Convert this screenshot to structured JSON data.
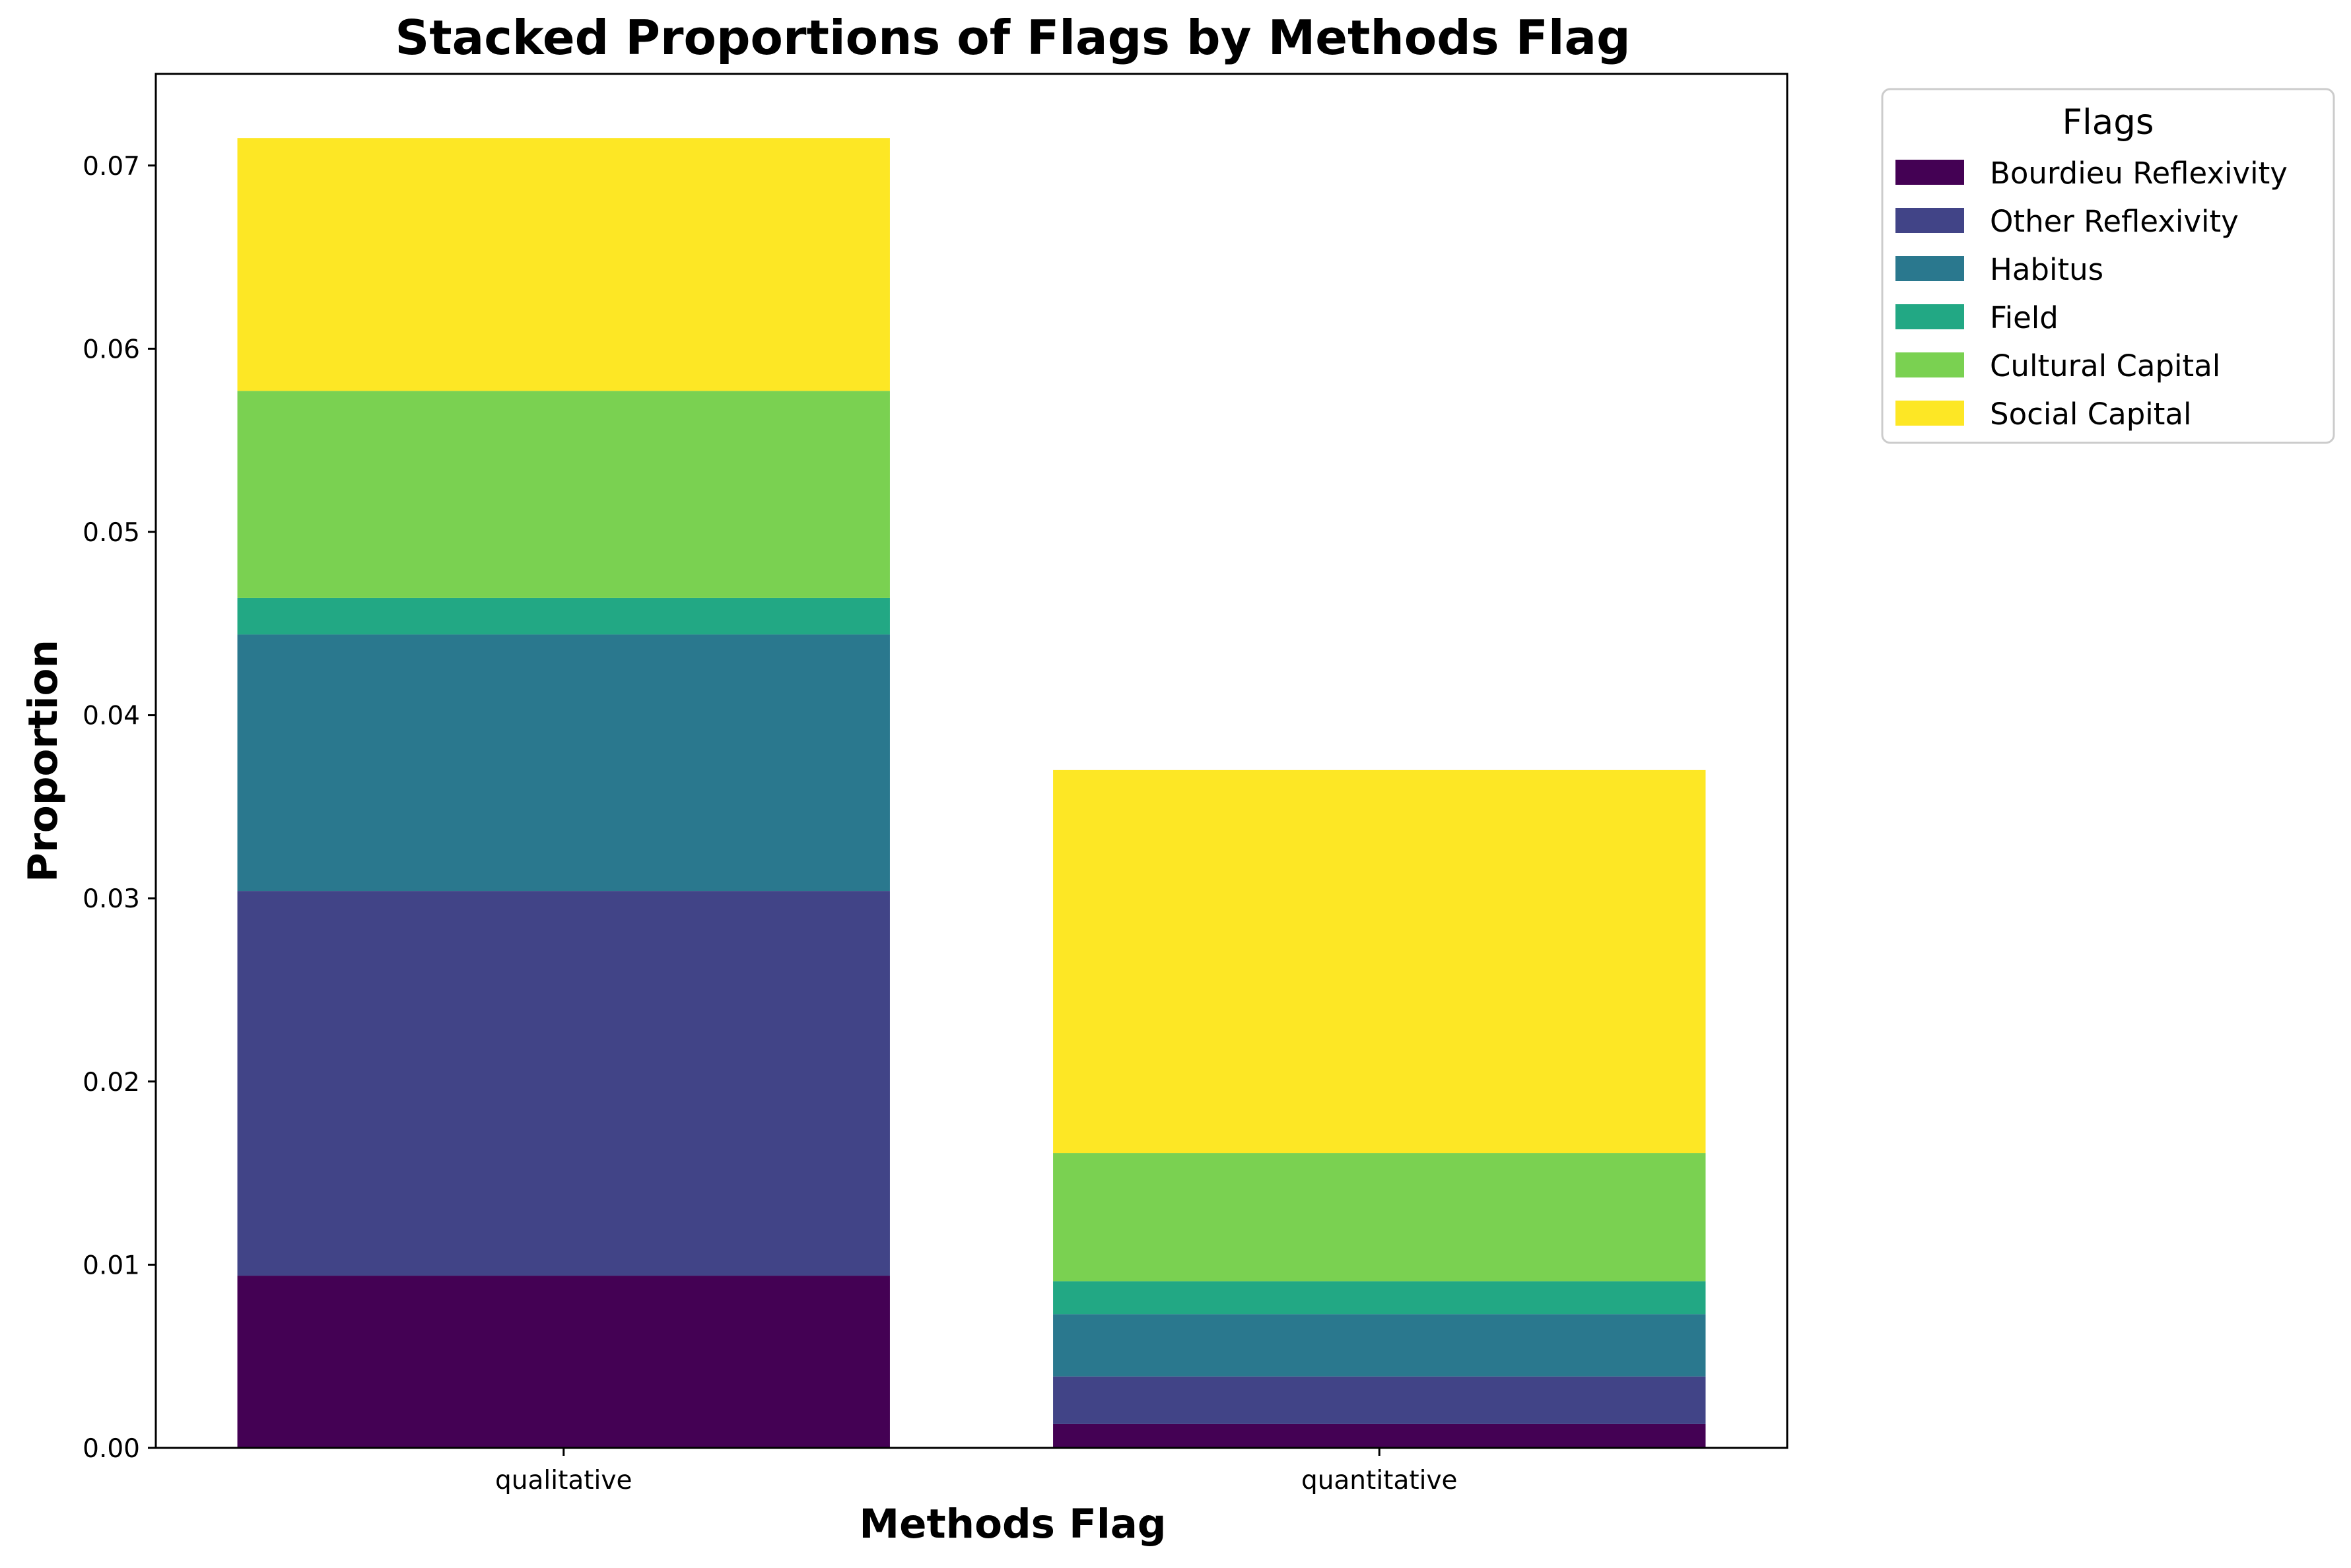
{
  "chart_data": {
    "type": "bar",
    "stacked": true,
    "title": "Stacked Proportions of Flags by Methods Flag",
    "xlabel": "Methods Flag",
    "ylabel": "Proportion",
    "categories": [
      "qualitative",
      "quantitative"
    ],
    "ylim": [
      0,
      0.075
    ],
    "yticks": [
      0.0,
      0.01,
      0.02,
      0.03,
      0.04,
      0.05,
      0.06,
      0.07
    ],
    "ytick_labels": [
      "0.00",
      "0.01",
      "0.02",
      "0.03",
      "0.04",
      "0.05",
      "0.06",
      "0.07"
    ],
    "grid": false,
    "legend": {
      "title": "Flags",
      "placement": "outside upper-right"
    },
    "series": [
      {
        "name": "Bourdieu Reflexivity",
        "color": "#440154",
        "values": [
          0.0094,
          0.0013
        ]
      },
      {
        "name": "Other Reflexivity",
        "color": "#414487",
        "values": [
          0.021,
          0.0026
        ]
      },
      {
        "name": "Habitus",
        "color": "#2a788e",
        "values": [
          0.014,
          0.0034
        ]
      },
      {
        "name": "Field",
        "color": "#22a884",
        "values": [
          0.002,
          0.0018
        ]
      },
      {
        "name": "Cultural Capital",
        "color": "#7ad151",
        "values": [
          0.0113,
          0.007
        ]
      },
      {
        "name": "Social Capital",
        "color": "#fde725",
        "values": [
          0.0138,
          0.0209
        ]
      }
    ]
  }
}
